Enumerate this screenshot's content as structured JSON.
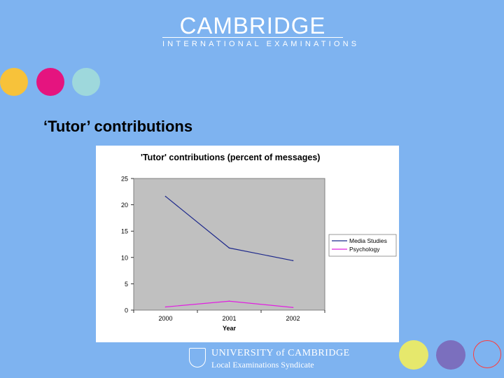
{
  "header": {
    "logo_title": "CAMBRIDGE",
    "logo_subtitle": "INTERNATIONAL EXAMINATIONS"
  },
  "decor": {
    "top_dots": [
      "#f7c23a",
      "#e5147f",
      "#9ed8dc"
    ],
    "bottom_dots": [
      "#e6e86c",
      "#7b6fbe",
      "#ff3b3b"
    ]
  },
  "slide": {
    "heading": "‘Tutor’ contributions"
  },
  "chart_data": {
    "type": "line",
    "title": "'Tutor' contributions (percent of messages)",
    "xlabel": "Year",
    "ylabel": "",
    "categories": [
      "2000",
      "2001",
      "2002"
    ],
    "ylim": [
      0,
      25
    ],
    "yticks": [
      "0",
      "5",
      "10",
      "15",
      "20",
      "25"
    ],
    "plot_background": "#c0c0c0",
    "legend_position": "right",
    "series": [
      {
        "name": "Media Studies",
        "values": [
          21.6,
          11.8,
          9.4
        ],
        "color": "#1f2a8c"
      },
      {
        "name": "Psychology",
        "values": [
          0.6,
          1.7,
          0.5
        ],
        "color": "#e020e0"
      }
    ]
  },
  "footer": {
    "line1": "UNIVERSITY of CAMBRIDGE",
    "line2": "Local Examinations Syndicate"
  }
}
